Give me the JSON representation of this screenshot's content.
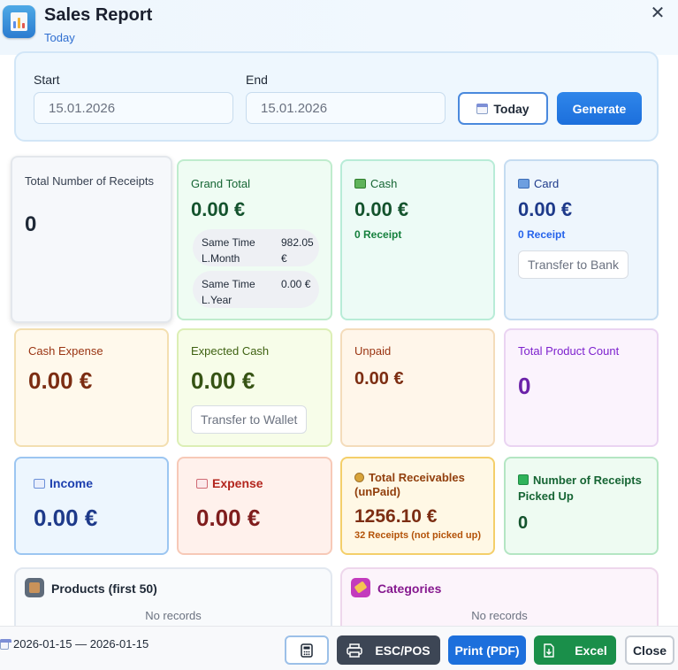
{
  "window": {
    "title": "Sales Report",
    "subtitle": "Today",
    "close_glyph": "✕"
  },
  "filter": {
    "start_label": "Start",
    "start_value": "15.01.2026",
    "end_label": "End",
    "end_value": "15.01.2026",
    "today_button": "Today",
    "generate_button": "Generate"
  },
  "cards": {
    "total_receipts": {
      "title": "Total Number of Receipts",
      "value": "0"
    },
    "grand_total": {
      "title": "Grand Total",
      "value": "0.00 €",
      "last_month_label": "Same Time L.Month",
      "last_month_value": "982.05 €",
      "last_year_label": "Same Time L.Year",
      "last_year_value": "0.00 €"
    },
    "cash": {
      "title": "Cash",
      "value": "0.00 €",
      "receipts": "0 Receipt"
    },
    "card": {
      "title": "Card",
      "value": "0.00 €",
      "receipts": "0 Receipt",
      "transfer_button": "Transfer to Bank"
    },
    "cash_expense": {
      "title": "Cash Expense",
      "value": "0.00 €"
    },
    "expected_cash": {
      "title": "Expected Cash",
      "value": "0.00 €",
      "transfer_button": "Transfer to Wallet"
    },
    "unpaid": {
      "title": "Unpaid",
      "value": "0.00 €"
    },
    "total_product_count": {
      "title": "Total Product Count",
      "value": "0"
    },
    "income": {
      "title": "Income",
      "value": "0.00 €"
    },
    "expense": {
      "title": "Expense",
      "value": "0.00 €"
    },
    "total_receivables": {
      "title": "Total Receivables (unPaid)",
      "value": "1256.10 €",
      "receipts": "32 Receipts (not picked up)"
    },
    "receipts_picked_up": {
      "title": "Number of Receipts Picked Up",
      "value": "0"
    }
  },
  "panels": {
    "products": {
      "title": "Products (first 50)",
      "empty": "No records"
    },
    "categories": {
      "title": "Categories",
      "empty": "No records"
    }
  },
  "footer": {
    "date_range": "2026-01-15 — 2026-01-15",
    "escpos_button": "ESC/POS",
    "pdf_button": "Print (PDF)",
    "excel_button": "Excel",
    "close_button": "Close"
  },
  "colors": {
    "primary_blue": "#1c6fdc",
    "green": "#1a8f4a",
    "dark_slate": "#3d4655"
  }
}
